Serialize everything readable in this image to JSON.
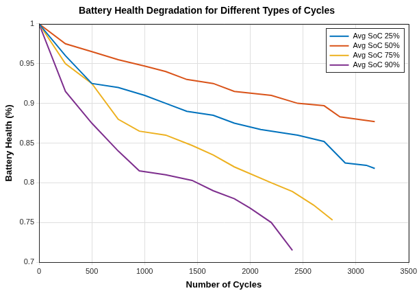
{
  "chart_data": {
    "type": "line",
    "title": "Battery Health Degradation for Different Types of Cycles",
    "x_label": "Number of Cycles",
    "y_label": "Battery Health (%)",
    "xlim": [
      0,
      3500
    ],
    "xticks": [
      0,
      500,
      1000,
      1500,
      2000,
      2500,
      3000,
      3500
    ],
    "ylim": [
      0.7,
      1
    ],
    "yticks": [
      0.7,
      0.75,
      0.8,
      0.85,
      0.9,
      0.95,
      1
    ],
    "grid": true,
    "legend": "upper right",
    "series": [
      {
        "name": "Avg SoC 25%",
        "color": "#0072BD",
        "x": [
          0,
          250,
          500,
          750,
          1000,
          1200,
          1400,
          1650,
          1850,
          2100,
          2450,
          2700,
          2900,
          3100,
          3180
        ],
        "values": [
          1,
          0.96,
          0.925,
          0.92,
          0.91,
          0.9,
          0.89,
          0.885,
          0.875,
          0.867,
          0.86,
          0.852,
          0.825,
          0.822,
          0.818
        ]
      },
      {
        "name": "Avg SoC 50%",
        "color": "#D95319",
        "x": [
          0,
          250,
          500,
          750,
          1000,
          1200,
          1400,
          1650,
          1850,
          2200,
          2450,
          2700,
          2850,
          3180
        ],
        "values": [
          1,
          0.975,
          0.965,
          0.955,
          0.947,
          0.94,
          0.93,
          0.925,
          0.915,
          0.91,
          0.9,
          0.897,
          0.883,
          0.877
        ]
      },
      {
        "name": "Avg SoC 75%",
        "color": "#EDB120",
        "x": [
          0,
          250,
          500,
          750,
          950,
          1200,
          1450,
          1650,
          1850,
          2200,
          2400,
          2600,
          2780
        ],
        "values": [
          1,
          0.95,
          0.925,
          0.88,
          0.865,
          0.86,
          0.847,
          0.835,
          0.82,
          0.8,
          0.789,
          0.772,
          0.753
        ]
      },
      {
        "name": "Avg SoC 90%",
        "color": "#7E2F8E",
        "x": [
          0,
          250,
          500,
          750,
          950,
          1200,
          1450,
          1650,
          1850,
          2000,
          2200,
          2400
        ],
        "values": [
          1,
          0.915,
          0.875,
          0.84,
          0.815,
          0.81,
          0.803,
          0.79,
          0.78,
          0.768,
          0.75,
          0.715
        ]
      }
    ]
  }
}
